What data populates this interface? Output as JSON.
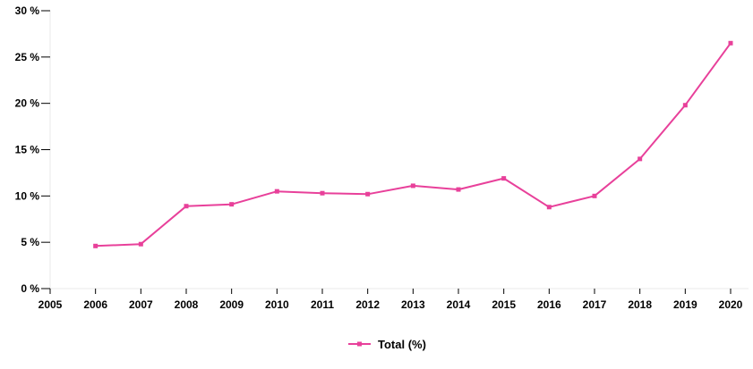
{
  "chart_data": {
    "type": "line",
    "x": [
      2006,
      2007,
      2008,
      2009,
      2010,
      2011,
      2012,
      2013,
      2014,
      2015,
      2016,
      2017,
      2018,
      2019,
      2020
    ],
    "x_ticks": [
      "2005",
      "2006",
      "2007",
      "2008",
      "2009",
      "2010",
      "2011",
      "2012",
      "2013",
      "2014",
      "2015",
      "2016",
      "2017",
      "2018",
      "2019",
      "2020"
    ],
    "y_ticks": [
      "0 %",
      "5 %",
      "10 %",
      "15 %",
      "20 %",
      "25 %",
      "30 %"
    ],
    "xlim": [
      2005,
      2020
    ],
    "ylim": [
      0,
      30
    ],
    "series": [
      {
        "name": "Total (%)",
        "color": "#e8409a",
        "values": [
          4.6,
          4.8,
          8.9,
          9.1,
          10.5,
          10.3,
          10.2,
          11.1,
          10.7,
          11.9,
          8.8,
          10.0,
          14.0,
          19.8,
          26.5
        ]
      }
    ],
    "grid": false,
    "legend_position": "bottom-center"
  }
}
